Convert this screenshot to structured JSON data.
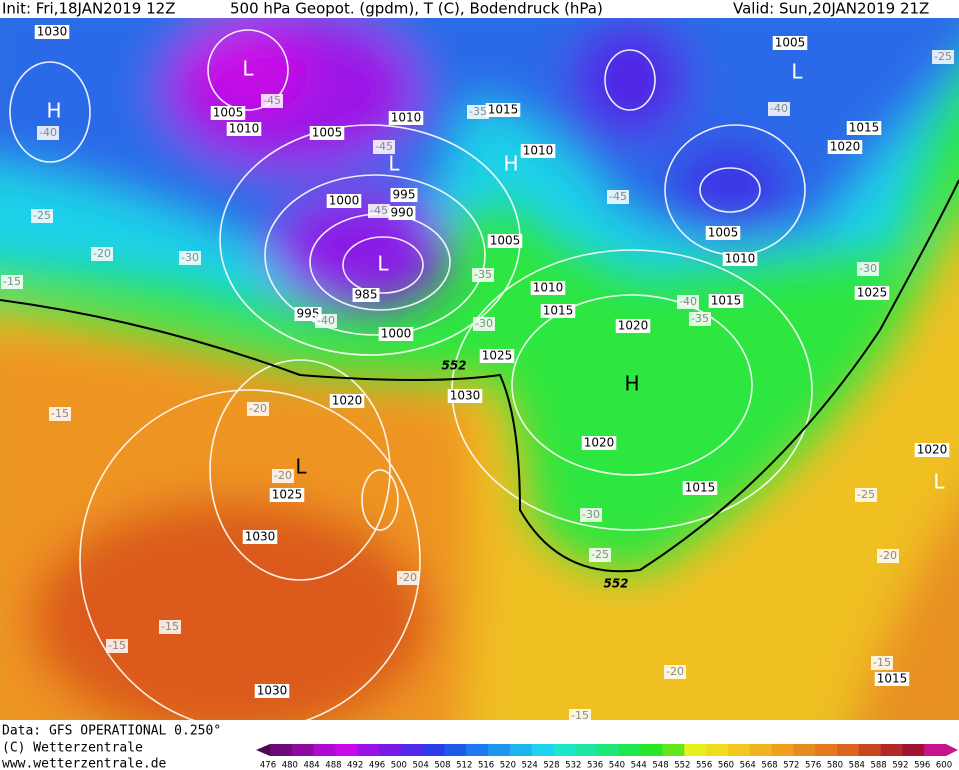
{
  "header": {
    "init": "Init: Fri,18JAN2019 12Z",
    "title": "500 hPa Geopot. (gpdm), T (C), Bodendruck (hPa)",
    "valid": "Valid: Sun,20JAN2019 21Z"
  },
  "footer": {
    "source": "Data: GFS OPERATIONAL 0.250°",
    "copyright": "(C) Wetterzentrale",
    "url": "www.wetterzentrale.de"
  },
  "legend": {
    "labels": [
      476,
      480,
      484,
      488,
      492,
      496,
      500,
      504,
      508,
      512,
      516,
      520,
      524,
      528,
      532,
      536,
      540,
      544,
      548,
      552,
      556,
      560,
      564,
      568,
      572,
      576,
      580,
      584,
      588,
      592,
      596,
      600
    ],
    "colors": [
      "#4b0a4f",
      "#6b0a78",
      "#8c0aa0",
      "#b00ad0",
      "#c80ae6",
      "#9b12e6",
      "#7a1ae6",
      "#5028e6",
      "#2c3ce6",
      "#1e5ae6",
      "#1e78f0",
      "#1e96f0",
      "#1eb4f0",
      "#1ed2f0",
      "#1ee6c8",
      "#1ee6a0",
      "#1ee678",
      "#1ee650",
      "#28e628",
      "#64e61e",
      "#e6f01e",
      "#f0dc1e",
      "#f0c81e",
      "#f0b41e",
      "#f0a01e",
      "#e68c1e",
      "#e6781e",
      "#dc641e",
      "#c8461e",
      "#b42828",
      "#a01432",
      "#c8148c"
    ]
  },
  "map": {
    "pressure_labels": [
      "1030",
      "1005",
      "1010",
      "1005",
      "1010",
      "1015",
      "1010",
      "995",
      "1000",
      "990",
      "1005",
      "1010",
      "1015",
      "985",
      "995",
      "1000",
      "1020",
      "1025",
      "1030",
      "1020",
      "1025",
      "1030",
      "1030",
      "1005",
      "1015",
      "1020",
      "1005",
      "1010",
      "1015",
      "1025",
      "1020",
      "1015",
      "1020",
      "1015"
    ],
    "temperature_labels": [
      "-45",
      "-40",
      "-45",
      "-45",
      "-40",
      "-35",
      "-45",
      "-40",
      "-35",
      "-30",
      "-30",
      "-25",
      "-20",
      "-15",
      "-40",
      "-35",
      "-30",
      "-25",
      "-25",
      "-20",
      "-20",
      "-15",
      "-20",
      "-20",
      "-30",
      "-25",
      "-15",
      "-15",
      "-20",
      "-15",
      "-15"
    ],
    "pressure_centers": [
      "H",
      "L",
      "L",
      "L",
      "H",
      "L",
      "H",
      "L",
      "L"
    ],
    "height_contour_labels": [
      "552",
      "552"
    ]
  }
}
